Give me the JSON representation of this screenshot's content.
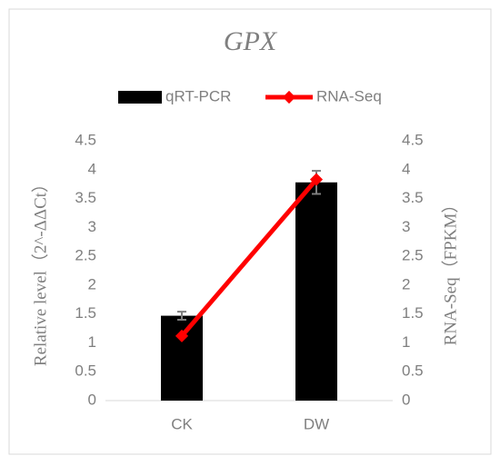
{
  "chart_data": {
    "type": "combo",
    "title": "GPX",
    "y_label": "Relative level（2^-ΔΔCt）",
    "y2_label": "RNA-Seq（FPKM）",
    "categories": [
      "CK",
      "DW"
    ],
    "series": [
      {
        "name": "qRT-PCR",
        "type": "bar",
        "color": "#000000",
        "values": [
          1.47,
          3.78
        ],
        "errors": [
          0.07,
          0.2
        ]
      },
      {
        "name": "RNA-Seq",
        "type": "line",
        "axis": "y2",
        "color": "#ff0000",
        "values": [
          1.12,
          3.83
        ]
      }
    ],
    "ylim": [
      0,
      4.5
    ],
    "yticks": [
      0,
      0.5,
      1,
      1.5,
      2,
      2.5,
      3,
      3.5,
      4,
      4.5
    ],
    "y2lim": [
      0,
      4.5
    ],
    "y2ticks": [
      0,
      0.5,
      1,
      1.5,
      2,
      2.5,
      3,
      3.5,
      4,
      4.5
    ],
    "grid": false
  }
}
